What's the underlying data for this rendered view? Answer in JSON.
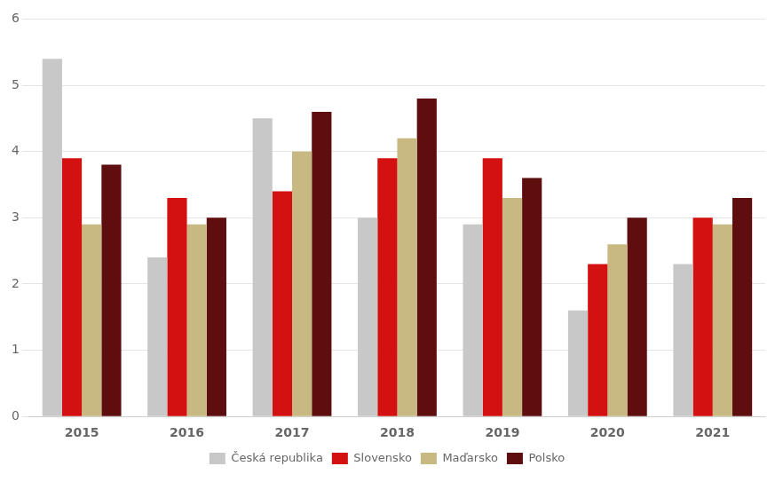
{
  "chart_data": {
    "type": "bar",
    "categories": [
      "2015",
      "2016",
      "2017",
      "2018",
      "2019",
      "2020",
      "2021"
    ],
    "series": [
      {
        "name": "Česká republika",
        "color": "#c8c8c8",
        "values": [
          5.4,
          2.4,
          4.5,
          3.0,
          2.9,
          1.6,
          2.3
        ]
      },
      {
        "name": "Slovensko",
        "color": "#d41111",
        "values": [
          3.9,
          3.3,
          3.4,
          3.9,
          3.9,
          2.3,
          3.0
        ]
      },
      {
        "name": "Maďarsko",
        "color": "#c8b882",
        "values": [
          2.9,
          2.9,
          4.0,
          4.2,
          3.3,
          2.6,
          2.9
        ]
      },
      {
        "name": "Polsko",
        "color": "#5e0e0e",
        "values": [
          3.8,
          3.0,
          4.6,
          4.8,
          3.6,
          3.0,
          3.3
        ]
      }
    ],
    "ylim": [
      0,
      6
    ],
    "yticks": [
      0,
      1,
      2,
      3,
      4,
      5,
      6
    ],
    "grid": true,
    "legend": "bottom"
  }
}
